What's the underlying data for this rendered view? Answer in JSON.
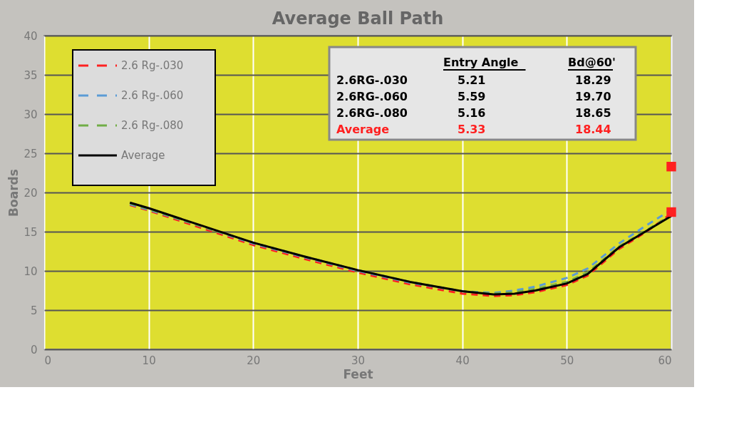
{
  "chart_data": {
    "type": "line",
    "title": "Average Ball Path",
    "xlabel": "Feet",
    "ylabel": "Boards",
    "xlim": [
      0,
      60
    ],
    "xticks": [
      0,
      10,
      20,
      30,
      40,
      50,
      60
    ],
    "ylim": [
      0,
      40
    ],
    "yticks": [
      0,
      5,
      10,
      15,
      20,
      25,
      30,
      35,
      40
    ],
    "grid": true,
    "legend": "top left",
    "x": [
      8.2,
      10,
      15,
      20,
      25,
      30,
      35,
      40,
      43,
      45,
      47,
      50,
      52,
      55,
      57.5,
      60
    ],
    "series": [
      {
        "name": "2.6 Rg-.030",
        "color": "#ff2020",
        "line_style": "dashed",
        "values": [
          18.4,
          17.7,
          15.5,
          13.3,
          11.5,
          9.8,
          8.3,
          7.1,
          6.8,
          6.9,
          7.3,
          8.2,
          9.4,
          12.8,
          14.9,
          17.3
        ]
      },
      {
        "name": "2.6 Rg-.060",
        "color": "#5b9bd5",
        "line_style": "dashed",
        "values": [
          18.5,
          17.8,
          15.7,
          13.5,
          11.7,
          10.0,
          8.5,
          7.4,
          7.2,
          7.5,
          8.0,
          9.1,
          10.3,
          13.5,
          15.7,
          17.8
        ]
      },
      {
        "name": "2.6 Rg-.080",
        "color": "#70ad47",
        "line_style": "dashed",
        "values": [
          18.6,
          17.9,
          15.7,
          13.6,
          11.8,
          10.1,
          8.6,
          7.4,
          7.1,
          7.3,
          7.7,
          8.6,
          9.8,
          13.1,
          15.1,
          17.1
        ]
      },
      {
        "name": "Average",
        "color": "#000000",
        "line_style": "solid",
        "values": [
          18.7,
          18.0,
          15.8,
          13.6,
          11.8,
          10.1,
          8.6,
          7.4,
          7.0,
          7.1,
          7.5,
          8.4,
          9.6,
          13.0,
          15.0,
          17.0
        ]
      },
      {
        "type": "scatter",
        "marker": "square",
        "color": "#ff2020",
        "x": [
          60,
          60
        ],
        "values": [
          23.3,
          17.5
        ]
      }
    ],
    "annotations": [
      "Entry Angle",
      "Bd@60'",
      "2.6RG-.030",
      "5.21",
      "18.29",
      "2.6RG-.060",
      "5.59",
      "19.70",
      "2.6RG-.080",
      "5.16",
      "18.65",
      "Average",
      "5.33",
      "18.44"
    ]
  }
}
